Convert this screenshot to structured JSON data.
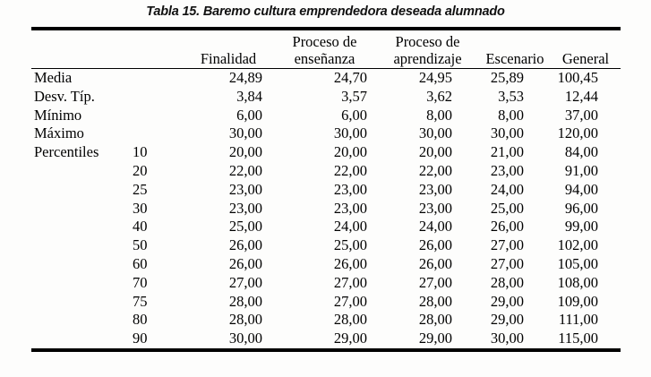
{
  "caption": "Tabla 15. Baremo cultura emprendedora deseada alumnado",
  "table": {
    "header": {
      "columns": [
        {
          "line1": "",
          "line2": "Finalidad"
        },
        {
          "line1": "Proceso de",
          "line2": "enseñanza"
        },
        {
          "line1": "Proceso de",
          "line2": "aprendizaje"
        },
        {
          "line1": "",
          "line2": "Escenario"
        },
        {
          "line1": "",
          "line2": "General"
        }
      ]
    },
    "rows": [
      {
        "label": "Media",
        "sub": "",
        "values": [
          "24,89",
          "24,70",
          "24,95",
          "25,89",
          "100,45"
        ]
      },
      {
        "label": "Desv. Típ.",
        "sub": "",
        "values": [
          "3,84",
          "3,57",
          "3,62",
          "3,53",
          "12,44"
        ]
      },
      {
        "label": "Mínimo",
        "sub": "",
        "values": [
          "6,00",
          "6,00",
          "8,00",
          "8,00",
          "37,00"
        ]
      },
      {
        "label": "Máximo",
        "sub": "",
        "values": [
          "30,00",
          "30,00",
          "30,00",
          "30,00",
          "120,00"
        ]
      },
      {
        "label": "Percentiles",
        "sub": "10",
        "values": [
          "20,00",
          "20,00",
          "20,00",
          "21,00",
          "84,00"
        ]
      },
      {
        "label": "",
        "sub": "20",
        "values": [
          "22,00",
          "22,00",
          "22,00",
          "23,00",
          "91,00"
        ]
      },
      {
        "label": "",
        "sub": "25",
        "values": [
          "23,00",
          "23,00",
          "23,00",
          "24,00",
          "94,00"
        ]
      },
      {
        "label": "",
        "sub": "30",
        "values": [
          "23,00",
          "23,00",
          "23,00",
          "25,00",
          "96,00"
        ]
      },
      {
        "label": "",
        "sub": "40",
        "values": [
          "25,00",
          "24,00",
          "24,00",
          "26,00",
          "99,00"
        ]
      },
      {
        "label": "",
        "sub": "50",
        "values": [
          "26,00",
          "25,00",
          "26,00",
          "27,00",
          "102,00"
        ]
      },
      {
        "label": "",
        "sub": "60",
        "values": [
          "26,00",
          "26,00",
          "26,00",
          "27,00",
          "105,00"
        ]
      },
      {
        "label": "",
        "sub": "70",
        "values": [
          "27,00",
          "27,00",
          "27,00",
          "28,00",
          "108,00"
        ]
      },
      {
        "label": "",
        "sub": "75",
        "values": [
          "28,00",
          "27,00",
          "28,00",
          "29,00",
          "109,00"
        ]
      },
      {
        "label": "",
        "sub": "80",
        "values": [
          "28,00",
          "28,00",
          "28,00",
          "29,00",
          "111,00"
        ]
      },
      {
        "label": "",
        "sub": "90",
        "values": [
          "30,00",
          "29,00",
          "29,00",
          "30,00",
          "115,00"
        ]
      }
    ]
  },
  "colors": {
    "text": "#000000",
    "rule": "#000000",
    "background": "#fdfdfc"
  }
}
